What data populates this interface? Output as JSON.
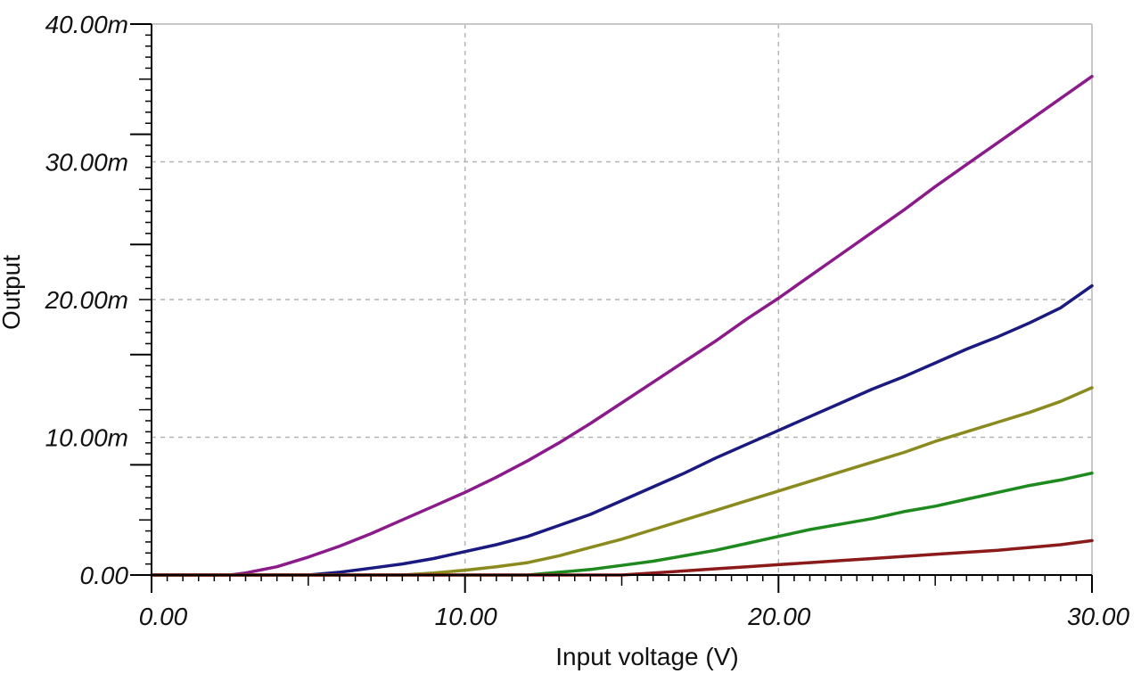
{
  "chart_data": {
    "type": "line",
    "xlabel": "Input voltage (V)",
    "ylabel": "Output",
    "xlim": [
      0,
      30
    ],
    "ylim": [
      0,
      40
    ],
    "x_ticks": [
      "0.00",
      "10.00",
      "20.00",
      "30.00"
    ],
    "y_ticks": [
      "0.00",
      "10.00m",
      "20.00m",
      "30.00m",
      "40.00m"
    ],
    "y_unit": "m",
    "grid": true,
    "legend": "none",
    "colors": {
      "axis": "#000000",
      "grid": "#b4b4b4",
      "frame": "#c8c8c8",
      "background": "#ffffff"
    },
    "series": [
      {
        "color": "#8b1a8b",
        "x": [
          0,
          2.5,
          3,
          4,
          5,
          6,
          7,
          8,
          9,
          10,
          11,
          12,
          13,
          14,
          15,
          16,
          17,
          18,
          19,
          20,
          21,
          22,
          23,
          24,
          25,
          26,
          27,
          28,
          29,
          30
        ],
        "y": [
          0,
          0,
          0.15,
          0.6,
          1.3,
          2.1,
          3.0,
          4.0,
          5.0,
          6.0,
          7.1,
          8.3,
          9.6,
          11.0,
          12.5,
          14.0,
          15.5,
          17.0,
          18.6,
          20.1,
          21.7,
          23.3,
          24.9,
          26.5,
          28.2,
          29.8,
          31.4,
          33.0,
          34.6,
          36.2
        ]
      },
      {
        "color": "#1a1a80",
        "x": [
          0,
          5,
          6,
          7,
          8,
          9,
          10,
          11,
          12,
          13,
          14,
          15,
          16,
          17,
          18,
          19,
          20,
          21,
          22,
          23,
          24,
          25,
          26,
          27,
          28,
          29,
          30
        ],
        "y": [
          0,
          0,
          0.2,
          0.5,
          0.8,
          1.2,
          1.7,
          2.2,
          2.8,
          3.6,
          4.4,
          5.4,
          6.4,
          7.4,
          8.5,
          9.5,
          10.5,
          11.5,
          12.5,
          13.5,
          14.4,
          15.4,
          16.4,
          17.3,
          18.3,
          19.4,
          21.0
        ]
      },
      {
        "color": "#8a8a1e",
        "x": [
          0,
          8,
          9,
          10,
          11,
          12,
          13,
          14,
          15,
          16,
          17,
          18,
          19,
          20,
          21,
          22,
          23,
          24,
          25,
          26,
          27,
          28,
          29,
          30
        ],
        "y": [
          0,
          0,
          0.15,
          0.35,
          0.6,
          0.9,
          1.4,
          2.0,
          2.6,
          3.3,
          4.0,
          4.7,
          5.4,
          6.1,
          6.8,
          7.5,
          8.2,
          8.9,
          9.7,
          10.4,
          11.1,
          11.8,
          12.6,
          13.6
        ]
      },
      {
        "color": "#1e8a1e",
        "x": [
          0,
          12,
          13,
          14,
          15,
          16,
          17,
          18,
          19,
          20,
          21,
          22,
          23,
          24,
          25,
          26,
          27,
          28,
          29,
          30
        ],
        "y": [
          0,
          0,
          0.2,
          0.4,
          0.7,
          1.0,
          1.4,
          1.8,
          2.3,
          2.8,
          3.3,
          3.7,
          4.1,
          4.6,
          5.0,
          5.5,
          6.0,
          6.5,
          6.9,
          7.4
        ]
      },
      {
        "color": "#8b1a1a",
        "x": [
          0,
          15,
          16,
          17,
          18,
          19,
          20,
          21,
          22,
          23,
          24,
          25,
          26,
          27,
          28,
          29,
          30
        ],
        "y": [
          0,
          0,
          0.15,
          0.3,
          0.45,
          0.6,
          0.75,
          0.9,
          1.05,
          1.2,
          1.35,
          1.5,
          1.65,
          1.8,
          2.0,
          2.2,
          2.5
        ]
      }
    ]
  }
}
